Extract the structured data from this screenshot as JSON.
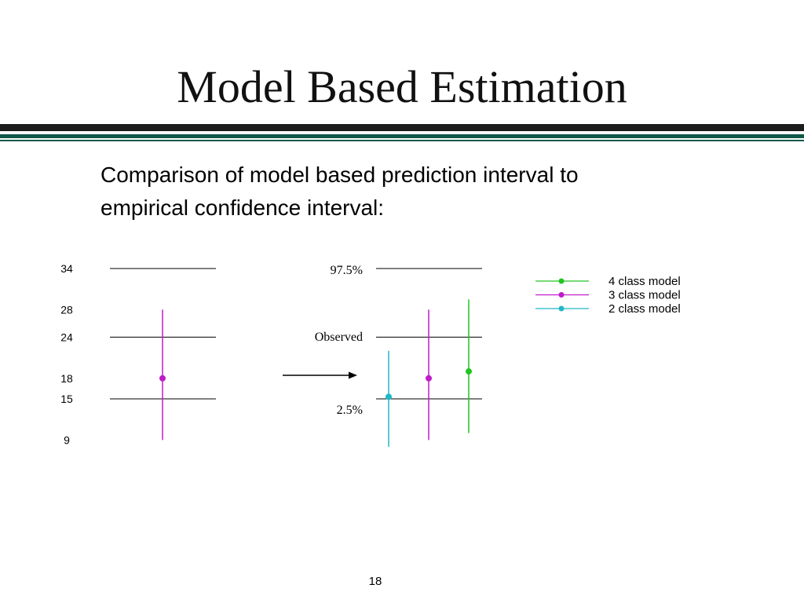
{
  "slide": {
    "title": "Model Based Estimation",
    "subtitle_lines": [
      "Comparison of model based prediction interval to",
      "empirical confidence interval:"
    ],
    "page_number": "18"
  },
  "diagram": {
    "y_ticks": [
      "34",
      "28",
      "24",
      "18",
      "15",
      "9"
    ],
    "left_panel": {
      "reference_values": [
        34,
        24,
        15
      ],
      "interval": {
        "low": 9,
        "high": 28,
        "point": 18,
        "color": "#c01cc8"
      }
    },
    "right_panel": {
      "labels": {
        "upper": "97.5%",
        "middle": "Observed",
        "lower": "2.5%"
      },
      "intervals": [
        {
          "model": "2 class model",
          "low": 8,
          "high": 22,
          "point": 15.3,
          "color": "#20b8c8"
        },
        {
          "model": "3 class model",
          "low": 9,
          "high": 28,
          "point": 18,
          "color": "#c01cc8"
        },
        {
          "model": "4 class model",
          "low": 10,
          "high": 29.5,
          "point": 19,
          "color": "#22c422"
        }
      ]
    },
    "legend": [
      {
        "label": "4 class model",
        "color": "#22c422"
      },
      {
        "label": "3 class model",
        "color": "#c01cc8"
      },
      {
        "label": "2 class model",
        "color": "#20b8c8"
      }
    ]
  }
}
